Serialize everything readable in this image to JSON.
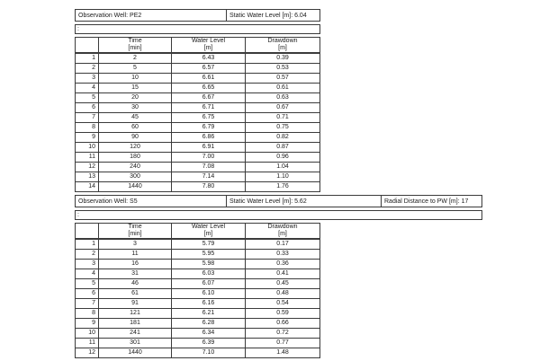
{
  "page": {
    "background": "#ffffff",
    "border_color": "#3b3b3b",
    "text_color": "#1b1b1b"
  },
  "sections": [
    {
      "info": {
        "observation_well": "Observation Well: PE2",
        "static_water_level": "Static Water Level [m]: 6.04"
      },
      "comment_row": ":",
      "table": {
        "columns": [
          {
            "label": "",
            "unit": ""
          },
          {
            "label": "Time",
            "unit": "[min]"
          },
          {
            "label": "Water Level",
            "unit": "[m]"
          },
          {
            "label": "Drawdown",
            "unit": "[m]"
          }
        ],
        "rows": [
          [
            "1",
            "2",
            "6.43",
            "0.39"
          ],
          [
            "2",
            "5",
            "6.57",
            "0.53"
          ],
          [
            "3",
            "10",
            "6.61",
            "0.57"
          ],
          [
            "4",
            "15",
            "6.65",
            "0.61"
          ],
          [
            "5",
            "20",
            "6.67",
            "0.63"
          ],
          [
            "6",
            "30",
            "6.71",
            "0.67"
          ],
          [
            "7",
            "45",
            "6.75",
            "0.71"
          ],
          [
            "8",
            "60",
            "6.79",
            "0.75"
          ],
          [
            "9",
            "90",
            "6.86",
            "0.82"
          ],
          [
            "10",
            "120",
            "6.91",
            "0.87"
          ],
          [
            "11",
            "180",
            "7.00",
            "0.96"
          ],
          [
            "12",
            "240",
            "7.08",
            "1.04"
          ],
          [
            "13",
            "300",
            "7.14",
            "1.10"
          ],
          [
            "14",
            "1440",
            "7.80",
            "1.76"
          ]
        ]
      }
    },
    {
      "info": {
        "observation_well": "Observation Well: S5",
        "static_water_level": "Static Water Level [m]: 5.62",
        "radial_distance": "Radial Distance to PW [m]: 17"
      },
      "comment_row": ":",
      "table": {
        "columns": [
          {
            "label": "",
            "unit": ""
          },
          {
            "label": "Time",
            "unit": "[min]"
          },
          {
            "label": "Water Level",
            "unit": "[m]"
          },
          {
            "label": "Drawdown",
            "unit": "[m]"
          }
        ],
        "rows": [
          [
            "1",
            "3",
            "5.79",
            "0.17"
          ],
          [
            "2",
            "11",
            "5.95",
            "0.33"
          ],
          [
            "3",
            "16",
            "5.98",
            "0.36"
          ],
          [
            "4",
            "31",
            "6.03",
            "0.41"
          ],
          [
            "5",
            "46",
            "6.07",
            "0.45"
          ],
          [
            "6",
            "61",
            "6.10",
            "0.48"
          ],
          [
            "7",
            "91",
            "6.16",
            "0.54"
          ],
          [
            "8",
            "121",
            "6.21",
            "0.59"
          ],
          [
            "9",
            "181",
            "6.28",
            "0.66"
          ],
          [
            "10",
            "241",
            "6.34",
            "0.72"
          ],
          [
            "11",
            "301",
            "6.39",
            "0.77"
          ],
          [
            "12",
            "1440",
            "7.10",
            "1.48"
          ]
        ]
      }
    }
  ]
}
